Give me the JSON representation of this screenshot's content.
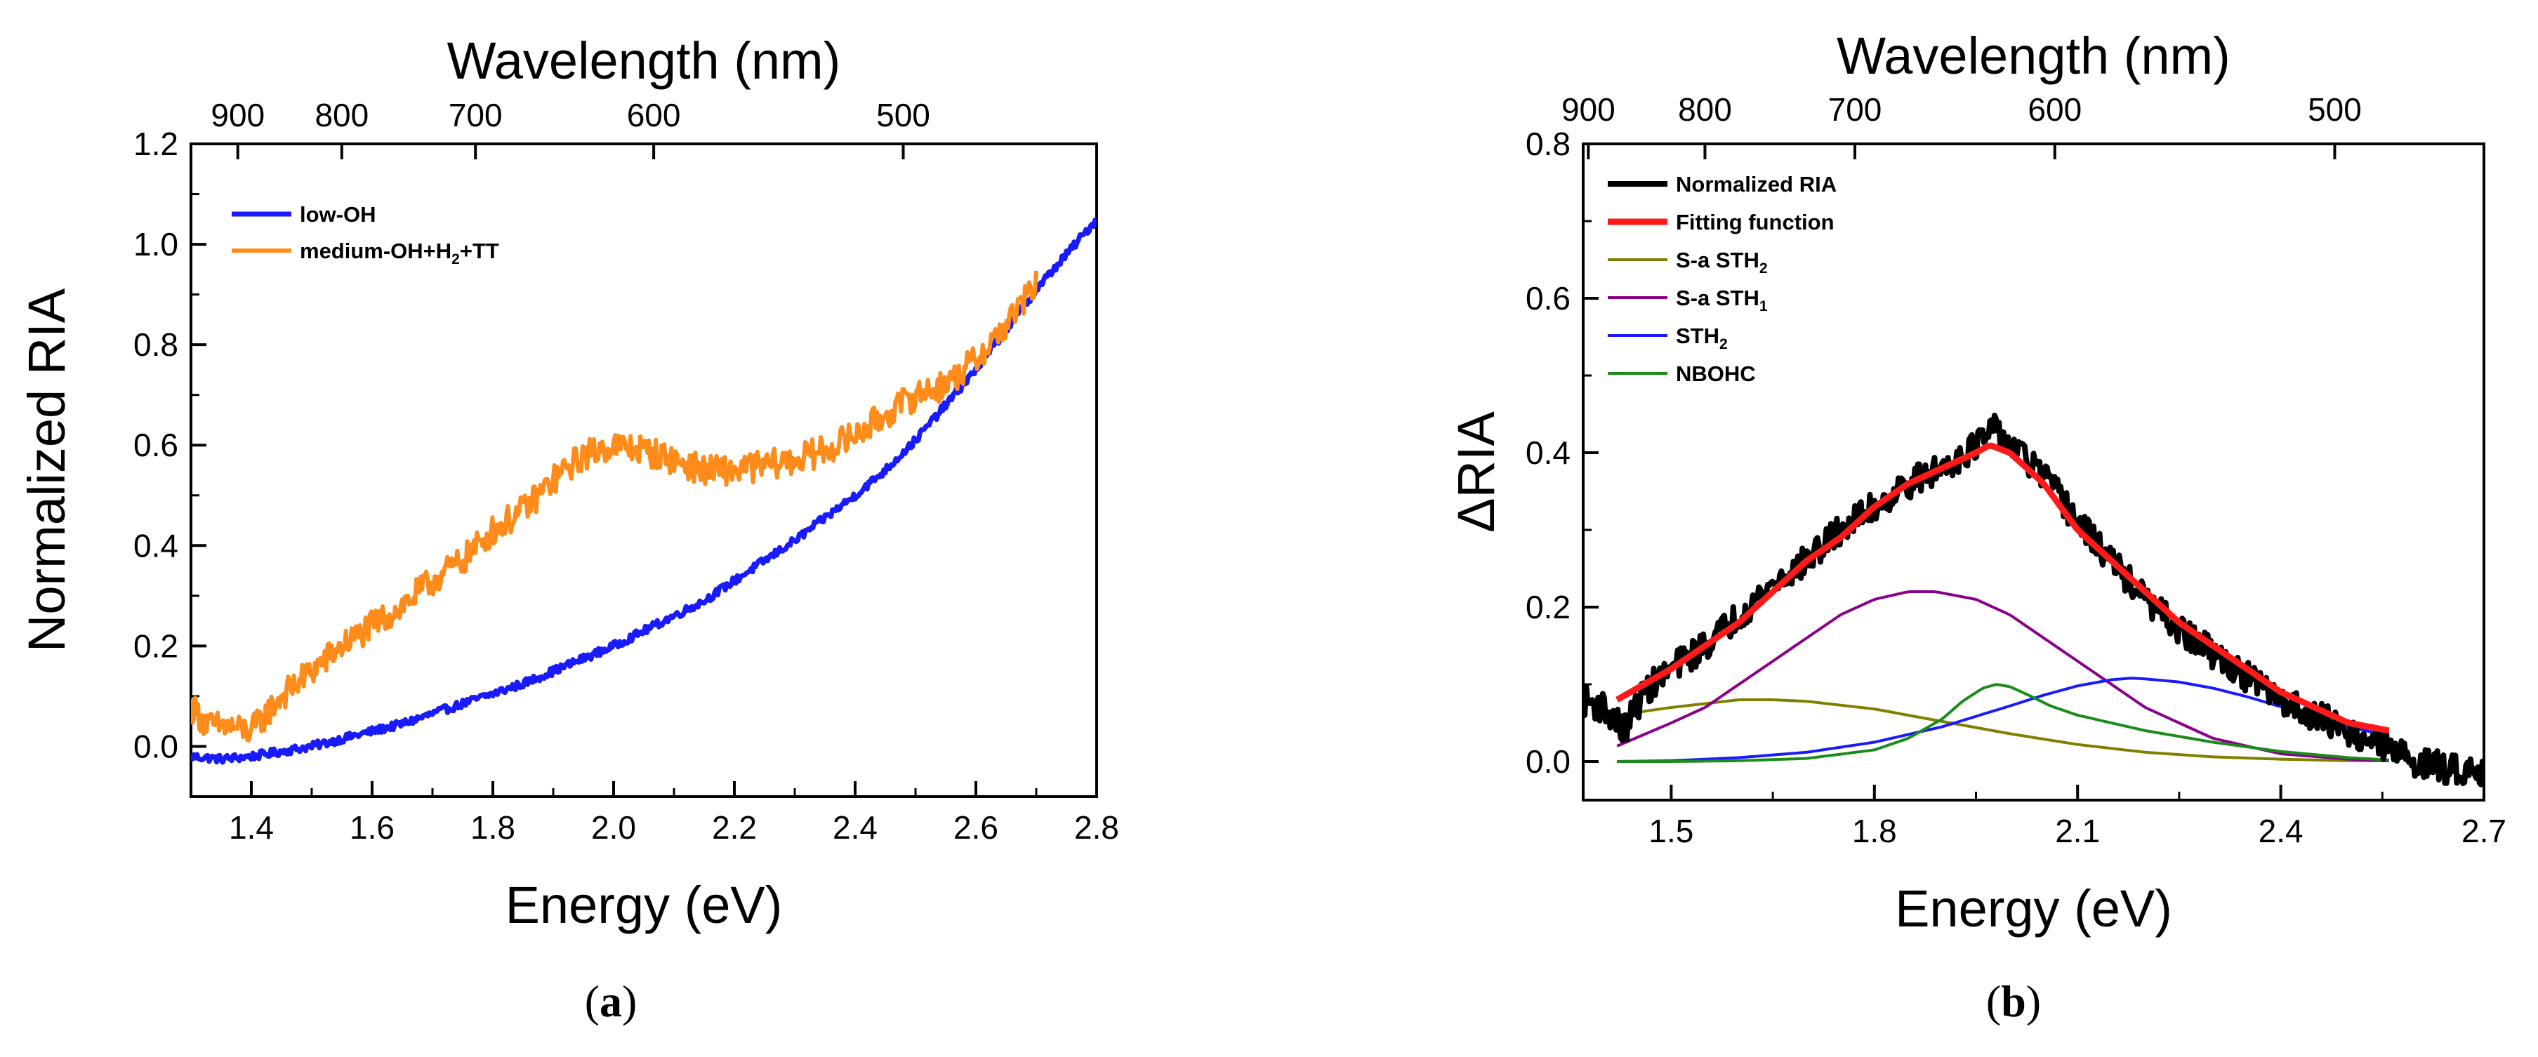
{
  "chart_data": [
    {
      "panel": "a",
      "type": "line",
      "xlabel": "Energy (eV)",
      "ylabel": "Normalized RIA",
      "top_xlabel": "Wavelength (nm)",
      "xlim": [
        1.3,
        2.8
      ],
      "ylim": [
        -0.1,
        1.2
      ],
      "xticks": [
        1.4,
        1.6,
        1.8,
        2.0,
        2.2,
        2.4,
        2.6,
        2.8
      ],
      "xtick_labels": [
        "1.4",
        "1.6",
        "1.8",
        "2.0",
        "2.2",
        "2.4",
        "2.6",
        "2.8"
      ],
      "yticks": [
        0.0,
        0.2,
        0.4,
        0.6,
        0.8,
        1.0,
        1.2
      ],
      "ytick_labels": [
        "0.0",
        "0.2",
        "0.4",
        "0.6",
        "0.8",
        "1.0",
        "1.2"
      ],
      "top_ticks_nm": [
        900,
        800,
        700,
        600,
        500
      ],
      "top_tick_labels": [
        "900",
        "800",
        "700",
        "600",
        "500"
      ],
      "legend_position": "top-left",
      "series": [
        {
          "name": "low-OH",
          "label_main": "low-OH",
          "color": "#1a1aff",
          "x": [
            1.3,
            1.35,
            1.4,
            1.45,
            1.5,
            1.55,
            1.6,
            1.65,
            1.7,
            1.75,
            1.8,
            1.85,
            1.9,
            1.95,
            2.0,
            2.05,
            2.1,
            2.15,
            2.2,
            2.25,
            2.3,
            2.35,
            2.4,
            2.45,
            2.5,
            2.55,
            2.6,
            2.65,
            2.7,
            2.75,
            2.8
          ],
          "y": [
            -0.02,
            -0.025,
            -0.02,
            -0.01,
            0.0,
            0.015,
            0.03,
            0.045,
            0.065,
            0.085,
            0.105,
            0.125,
            0.15,
            0.175,
            0.2,
            0.23,
            0.26,
            0.29,
            0.33,
            0.37,
            0.41,
            0.455,
            0.5,
            0.55,
            0.61,
            0.68,
            0.75,
            0.83,
            0.91,
            0.98,
            1.05
          ],
          "noise": 0.008
        },
        {
          "name": "medium-OH+H2+TT",
          "label_main": "medium-OH+H",
          "label_sub": "2",
          "label_tail": "+TT",
          "color": "#ff8c1a",
          "x": [
            1.3,
            1.33,
            1.36,
            1.4,
            1.45,
            1.5,
            1.55,
            1.6,
            1.65,
            1.7,
            1.75,
            1.8,
            1.85,
            1.9,
            1.95,
            2.0,
            2.05,
            2.1,
            2.15,
            2.2,
            2.25,
            2.3,
            2.35,
            2.4,
            2.45,
            2.5,
            2.55,
            2.6,
            2.65,
            2.7
          ],
          "y": [
            0.08,
            0.04,
            0.04,
            0.03,
            0.1,
            0.15,
            0.2,
            0.24,
            0.28,
            0.33,
            0.37,
            0.43,
            0.47,
            0.53,
            0.58,
            0.6,
            0.59,
            0.57,
            0.55,
            0.55,
            0.56,
            0.57,
            0.59,
            0.62,
            0.66,
            0.7,
            0.72,
            0.77,
            0.84,
            0.92
          ],
          "noise": 0.03
        }
      ]
    },
    {
      "panel": "b",
      "type": "line",
      "xlabel": "Energy (eV)",
      "ylabel": "ΔRIA",
      "top_xlabel": "Wavelength (nm)",
      "xlim": [
        1.37,
        2.7
      ],
      "ylim": [
        -0.05,
        0.8
      ],
      "xticks": [
        1.5,
        1.8,
        2.1,
        2.4,
        2.7
      ],
      "xtick_labels": [
        "1.5",
        "1.8",
        "2.1",
        "2.4",
        "2.7"
      ],
      "yticks": [
        0.0,
        0.2,
        0.4,
        0.6,
        0.8
      ],
      "ytick_labels": [
        "0.0",
        "0.2",
        "0.4",
        "0.6",
        "0.8"
      ],
      "top_ticks_nm": [
        900,
        800,
        700,
        600,
        500
      ],
      "top_tick_labels": [
        "900",
        "800",
        "700",
        "600",
        "500"
      ],
      "legend_position": "top-left",
      "series": [
        {
          "name": "Normalized RIA",
          "label_main": "Normalized RIA",
          "color": "#000000",
          "x": [
            1.37,
            1.4,
            1.43,
            1.46,
            1.5,
            1.55,
            1.6,
            1.65,
            1.7,
            1.75,
            1.8,
            1.85,
            1.9,
            1.95,
            1.98,
            2.0,
            2.05,
            2.1,
            2.15,
            2.2,
            2.25,
            2.3,
            2.35,
            2.4,
            2.45,
            2.5,
            2.55,
            2.6,
            2.65,
            2.7
          ],
          "y": [
            0.08,
            0.07,
            0.04,
            0.09,
            0.12,
            0.15,
            0.19,
            0.23,
            0.26,
            0.3,
            0.33,
            0.36,
            0.38,
            0.41,
            0.43,
            0.41,
            0.37,
            0.31,
            0.26,
            0.21,
            0.17,
            0.14,
            0.11,
            0.08,
            0.06,
            0.04,
            0.02,
            0.0,
            -0.01,
            -0.01
          ],
          "noise": 0.02
        },
        {
          "name": "Fitting function",
          "label_main": "Fitting function",
          "color": "#ff1a1a",
          "x": [
            1.42,
            1.5,
            1.55,
            1.6,
            1.65,
            1.7,
            1.75,
            1.8,
            1.85,
            1.9,
            1.95,
            1.97,
            2.0,
            2.05,
            2.1,
            2.15,
            2.2,
            2.25,
            2.3,
            2.35,
            2.4,
            2.45,
            2.5,
            2.56
          ],
          "y": [
            0.08,
            0.12,
            0.15,
            0.18,
            0.22,
            0.26,
            0.29,
            0.33,
            0.36,
            0.38,
            0.4,
            0.41,
            0.4,
            0.36,
            0.3,
            0.26,
            0.22,
            0.18,
            0.15,
            0.12,
            0.09,
            0.07,
            0.05,
            0.04
          ],
          "noise": 0
        },
        {
          "name": "S-a STH2",
          "label_main": "S-a STH",
          "label_sub": "2",
          "color": "#808000",
          "x": [
            1.42,
            1.5,
            1.55,
            1.6,
            1.65,
            1.7,
            1.8,
            1.9,
            2.0,
            2.1,
            2.2,
            2.3,
            2.4,
            2.5,
            2.56
          ],
          "y": [
            0.06,
            0.07,
            0.075,
            0.08,
            0.08,
            0.078,
            0.068,
            0.052,
            0.036,
            0.022,
            0.012,
            0.006,
            0.003,
            0.001,
            0.001
          ],
          "noise": 0
        },
        {
          "name": "S-a STH1",
          "label_main": "S-a STH",
          "label_sub": "1",
          "color": "#8b008b",
          "x": [
            1.42,
            1.5,
            1.55,
            1.6,
            1.65,
            1.7,
            1.75,
            1.8,
            1.85,
            1.89,
            1.95,
            2.0,
            2.05,
            2.1,
            2.15,
            2.2,
            2.25,
            2.3,
            2.35,
            2.4,
            2.5,
            2.56
          ],
          "y": [
            0.02,
            0.05,
            0.07,
            0.1,
            0.13,
            0.16,
            0.19,
            0.21,
            0.22,
            0.22,
            0.21,
            0.19,
            0.16,
            0.13,
            0.1,
            0.07,
            0.05,
            0.03,
            0.02,
            0.01,
            0.003,
            0.001
          ],
          "noise": 0
        },
        {
          "name": "STH2",
          "label_main": "STH",
          "label_sub": "2",
          "color": "#1a1aff",
          "x": [
            1.42,
            1.5,
            1.6,
            1.7,
            1.8,
            1.9,
            2.0,
            2.05,
            2.1,
            2.15,
            2.18,
            2.2,
            2.25,
            2.3,
            2.35,
            2.4,
            2.45,
            2.5,
            2.56
          ],
          "y": [
            0.0,
            0.001,
            0.005,
            0.012,
            0.025,
            0.045,
            0.072,
            0.086,
            0.098,
            0.106,
            0.108,
            0.107,
            0.103,
            0.095,
            0.084,
            0.071,
            0.058,
            0.045,
            0.033
          ],
          "noise": 0
        },
        {
          "name": "NBOHC",
          "label_main": "NBOHC",
          "color": "#1a8c1a",
          "x": [
            1.42,
            1.5,
            1.6,
            1.7,
            1.8,
            1.85,
            1.9,
            1.93,
            1.96,
            1.98,
            2.0,
            2.03,
            2.06,
            2.1,
            2.2,
            2.3,
            2.4,
            2.5,
            2.56
          ],
          "y": [
            0.0,
            0.0,
            0.001,
            0.004,
            0.015,
            0.03,
            0.055,
            0.078,
            0.095,
            0.1,
            0.097,
            0.085,
            0.072,
            0.06,
            0.04,
            0.025,
            0.013,
            0.005,
            0.002
          ],
          "noise": 0
        }
      ]
    }
  ],
  "captions": {
    "a": {
      "open": "(",
      "letter": "a",
      "close": ")"
    },
    "b": {
      "open": "(",
      "letter": "b",
      "close": ")"
    }
  }
}
